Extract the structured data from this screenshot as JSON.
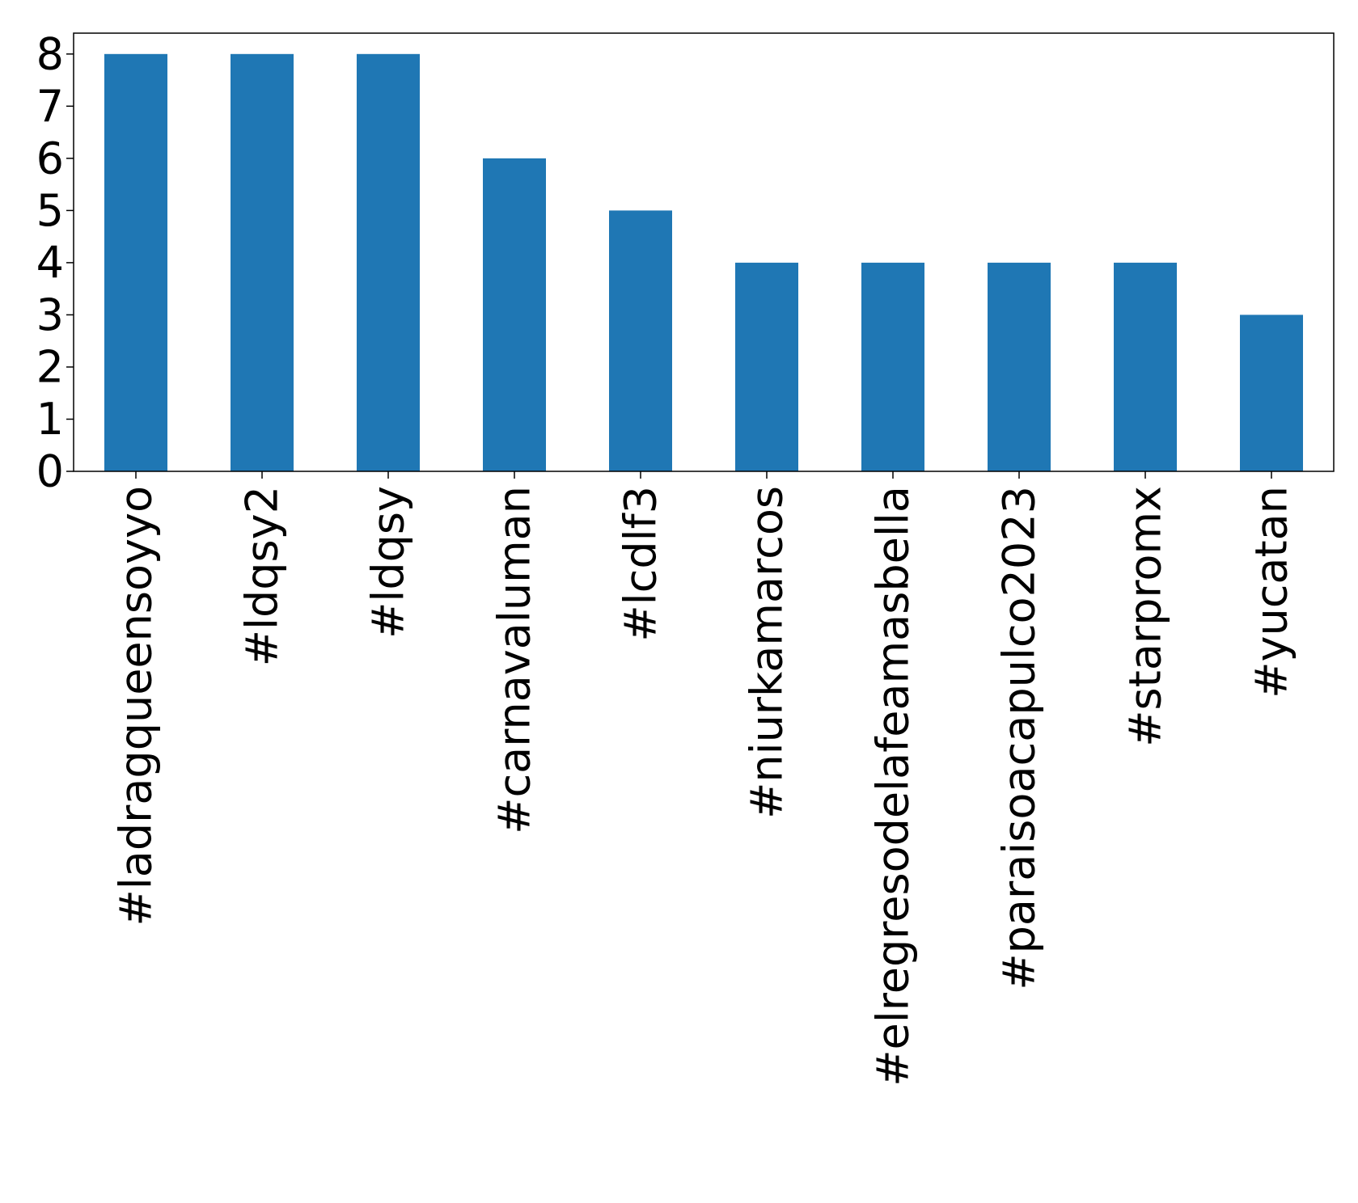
{
  "chart_data": {
    "type": "bar",
    "categories": [
      "#ladragqueensoyyo",
      "#ldqsy2",
      "#ldqsy",
      "#carnavaluman",
      "#lcdlf3",
      "#niurkamarcos",
      "#elregresodelafeamasbella",
      "#paraisoacapulco2023",
      "#starpromx",
      "#yucatan"
    ],
    "values": [
      8,
      8,
      8,
      6,
      5,
      4,
      4,
      4,
      4,
      3
    ],
    "title": "",
    "xlabel": "",
    "ylabel": "",
    "ylim": [
      0,
      8.4
    ],
    "yticks": [
      "0",
      "1",
      "2",
      "3",
      "4",
      "5",
      "6",
      "7",
      "8"
    ],
    "grid": false,
    "legend": "none",
    "bar_color": "#1f77b4"
  }
}
